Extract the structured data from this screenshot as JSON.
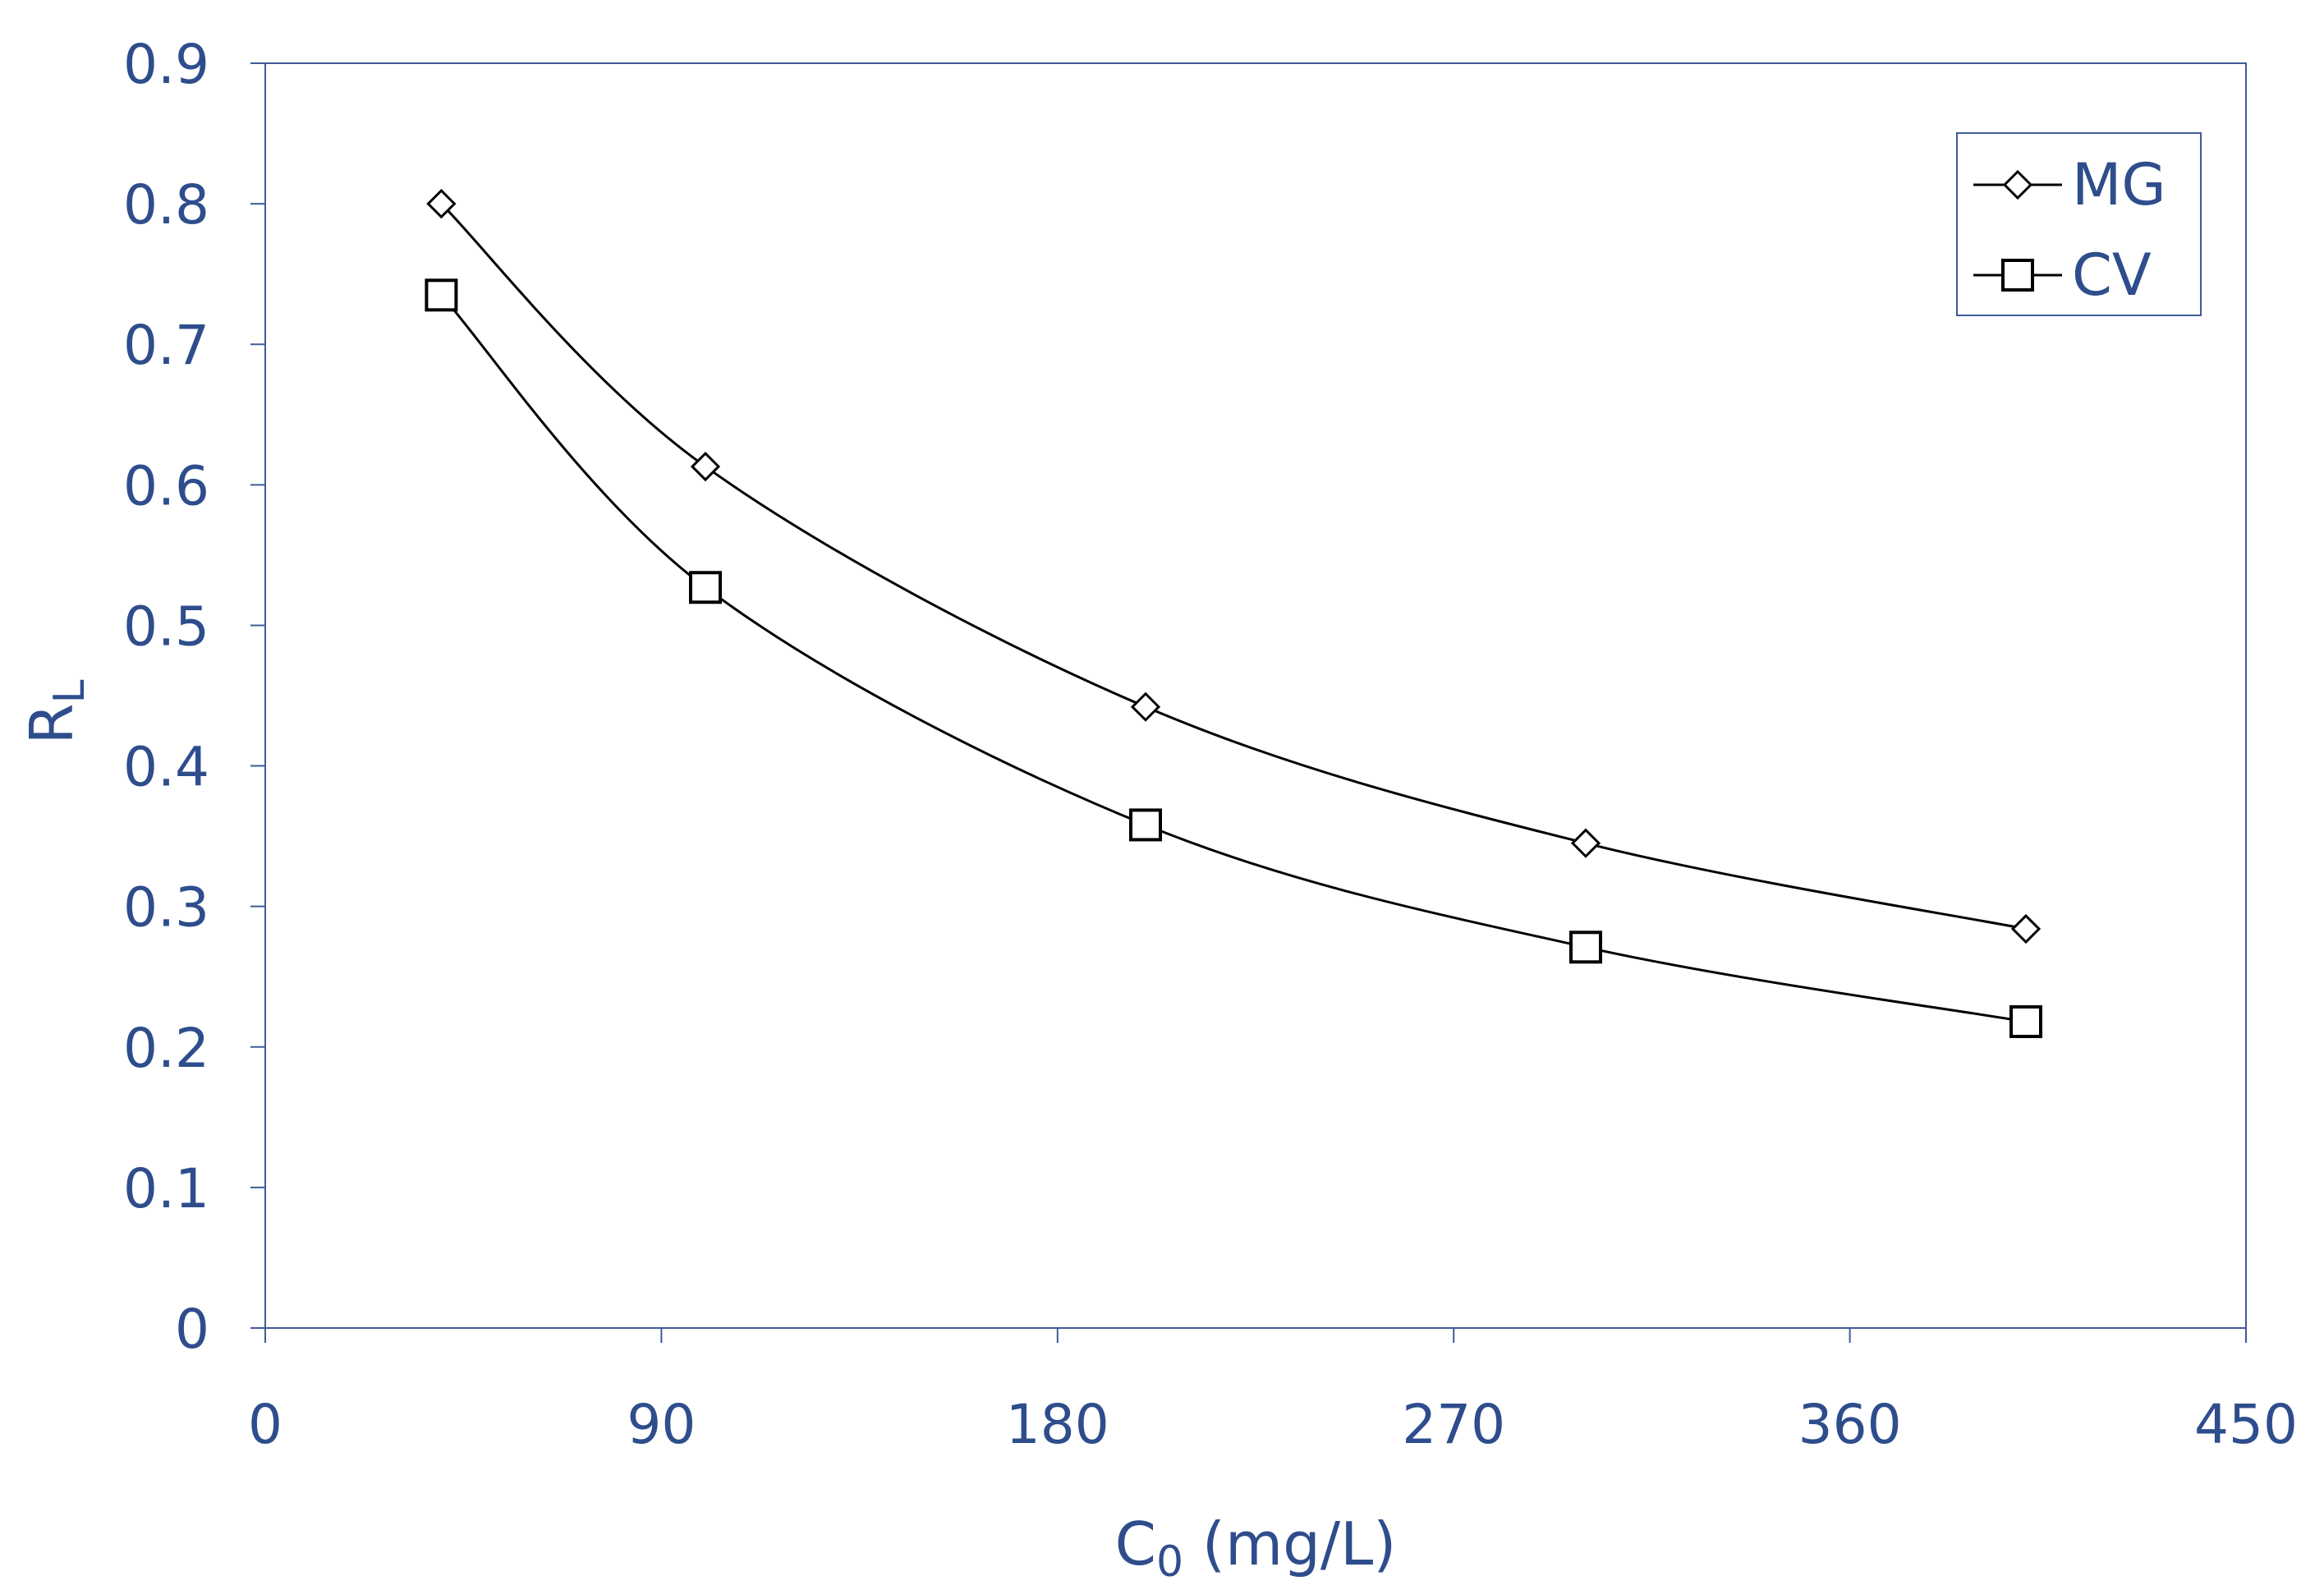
{
  "chart_data": {
    "type": "line",
    "title": "",
    "xlabel": {
      "main": "C",
      "sub": "0",
      "unit": " (mg/L)"
    },
    "ylabel": {
      "main": "R",
      "sub": "L"
    },
    "xlim": [
      0,
      450
    ],
    "ylim": [
      0,
      0.9
    ],
    "xticks": [
      "0",
      "90",
      "180",
      "270",
      "360",
      "450"
    ],
    "yticks": [
      "0",
      "0.1",
      "0.2",
      "0.3",
      "0.4",
      "0.5",
      "0.6",
      "0.7",
      "0.8",
      "0.9"
    ],
    "x": [
      40,
      100,
      200,
      300,
      400
    ],
    "series": [
      {
        "name": "MG",
        "marker": "diamond",
        "values": [
          0.8,
          0.613,
          0.442,
          0.345,
          0.284
        ]
      },
      {
        "name": "CV",
        "marker": "square",
        "values": [
          0.735,
          0.527,
          0.358,
          0.271,
          0.218
        ]
      }
    ],
    "legend": "top-right",
    "grid": false,
    "colors": {
      "text": "#2e4d8c",
      "axis": "#3f5b99",
      "line": "#000000",
      "marker_fill": "#ffffff"
    }
  }
}
